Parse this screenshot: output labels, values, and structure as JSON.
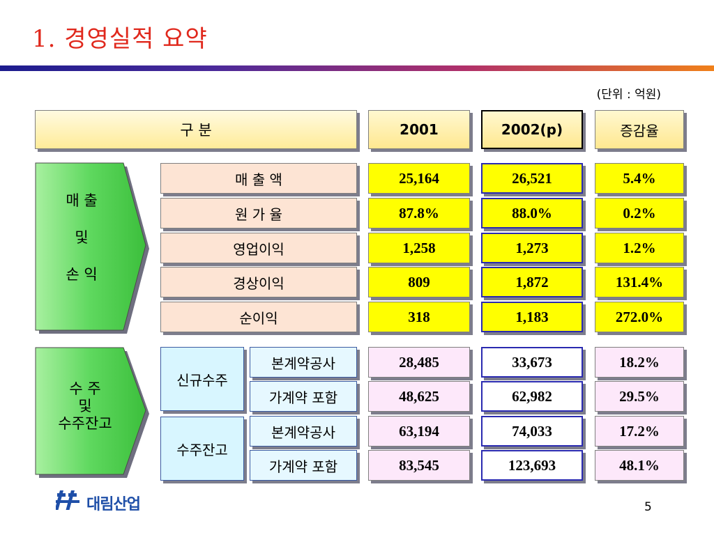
{
  "title": "1. 경영실적 요약",
  "unit": "(단위 : 억원)",
  "header": {
    "category": "구        분",
    "y2001": "2001",
    "y2002": "2002(p)",
    "rate": "증감율"
  },
  "section_pl": {
    "label_lines": [
      "매    출",
      "및",
      "손    익"
    ],
    "rows": [
      {
        "label": "매  출  액",
        "v2001": "25,164",
        "v2002": "26,521",
        "rate": "5.4%"
      },
      {
        "label": "원  가  율",
        "v2001": "87.8%",
        "v2002": "88.0%",
        "rate": "0.2%"
      },
      {
        "label": "영업이익",
        "v2001": "1,258",
        "v2002": "1,273",
        "rate": "1.2%"
      },
      {
        "label": "경상이익",
        "v2001": "809",
        "v2002": "1,872",
        "rate": "131.4%"
      },
      {
        "label": "순이익",
        "v2001": "318",
        "v2002": "1,183",
        "rate": "272.0%"
      }
    ]
  },
  "section_orders": {
    "label_lines": [
      "수    주",
      "및",
      "수주잔고"
    ],
    "groups": [
      {
        "label": "신규수주",
        "rows": [
          {
            "label": "본계약공사",
            "v2001": "28,485",
            "v2002": "33,673",
            "rate": "18.2%"
          },
          {
            "label": "가계약 포함",
            "v2001": "48,625",
            "v2002": "62,982",
            "rate": "29.5%"
          }
        ]
      },
      {
        "label": "수주잔고",
        "rows": [
          {
            "label": "본계약공사",
            "v2001": "63,194",
            "v2002": "74,033",
            "rate": "17.2%"
          },
          {
            "label": "가계약 포함",
            "v2001": "83,545",
            "v2002": "123,693",
            "rate": "48.1%"
          }
        ]
      }
    ]
  },
  "footer": {
    "logo_text": "대림산업",
    "page_number": "5"
  },
  "colors": {
    "title": "#e0281c",
    "header_fill": "#ffe890",
    "value_fill": "#ffff00",
    "arrow_fill": "#5ed85e",
    "logo": "#1f4fa8"
  }
}
